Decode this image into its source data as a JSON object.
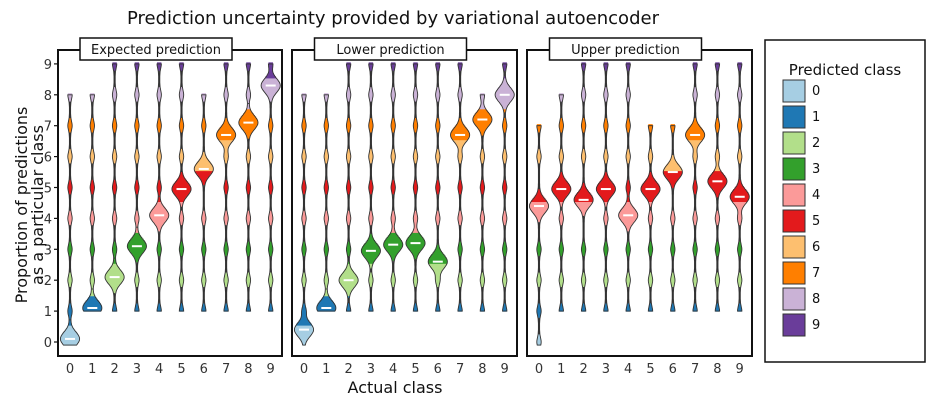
{
  "chart_data": {
    "type": "violin",
    "title": "Prediction uncertainty provided by variational autoencoder",
    "xlabel": "Actual class",
    "ylabel_line1": "Proportion of predictions",
    "ylabel_line2": "as a particular class",
    "x_ticks": [
      "0",
      "1",
      "2",
      "3",
      "4",
      "5",
      "6",
      "7",
      "8",
      "9"
    ],
    "y_ticks": [
      "0",
      "1",
      "2",
      "3",
      "4",
      "5",
      "6",
      "7",
      "8",
      "9"
    ],
    "ylim": [
      -0.2,
      9.3
    ],
    "legend": {
      "title": "Predicted class",
      "placement": "right",
      "entries": [
        "0",
        "1",
        "2",
        "3",
        "4",
        "5",
        "6",
        "7",
        "8",
        "9"
      ]
    },
    "class_colors": [
      "#a6cee3",
      "#1f78b4",
      "#b2df8a",
      "#33a02c",
      "#fb9a99",
      "#e31a1c",
      "#fdbf6f",
      "#ff7f00",
      "#cab2d6",
      "#6a3d9a"
    ],
    "panels": [
      {
        "title": "Expected prediction",
        "medians": [
          0.1,
          1.1,
          2.1,
          3.1,
          4.1,
          4.95,
          5.6,
          6.7,
          7.1,
          8.3
        ],
        "ranges": [
          [
            -0.1,
            8
          ],
          [
            1,
            8
          ],
          [
            1,
            9
          ],
          [
            1,
            9
          ],
          [
            1,
            9
          ],
          [
            1,
            9
          ],
          [
            1,
            8
          ],
          [
            1,
            9
          ],
          [
            1,
            9
          ],
          [
            1,
            9
          ]
        ]
      },
      {
        "title": "Lower prediction",
        "medians": [
          0.4,
          1.1,
          2.0,
          2.95,
          3.15,
          3.2,
          2.6,
          6.7,
          7.2,
          8.0
        ],
        "ranges": [
          [
            -0.1,
            8
          ],
          [
            1,
            8
          ],
          [
            1,
            9
          ],
          [
            1,
            9
          ],
          [
            1,
            9
          ],
          [
            1,
            9
          ],
          [
            1,
            9
          ],
          [
            1,
            9
          ],
          [
            1,
            8
          ],
          [
            1,
            9
          ]
        ]
      },
      {
        "title": "Upper prediction",
        "medians": [
          4.4,
          4.95,
          4.6,
          4.95,
          4.1,
          4.95,
          5.5,
          6.7,
          5.2,
          4.7
        ],
        "ranges": [
          [
            -0.1,
            7
          ],
          [
            1,
            8
          ],
          [
            1,
            9
          ],
          [
            1,
            9
          ],
          [
            1,
            9
          ],
          [
            1,
            7
          ],
          [
            1,
            7
          ],
          [
            1,
            9
          ],
          [
            1,
            9
          ],
          [
            1,
            9
          ]
        ]
      }
    ]
  }
}
